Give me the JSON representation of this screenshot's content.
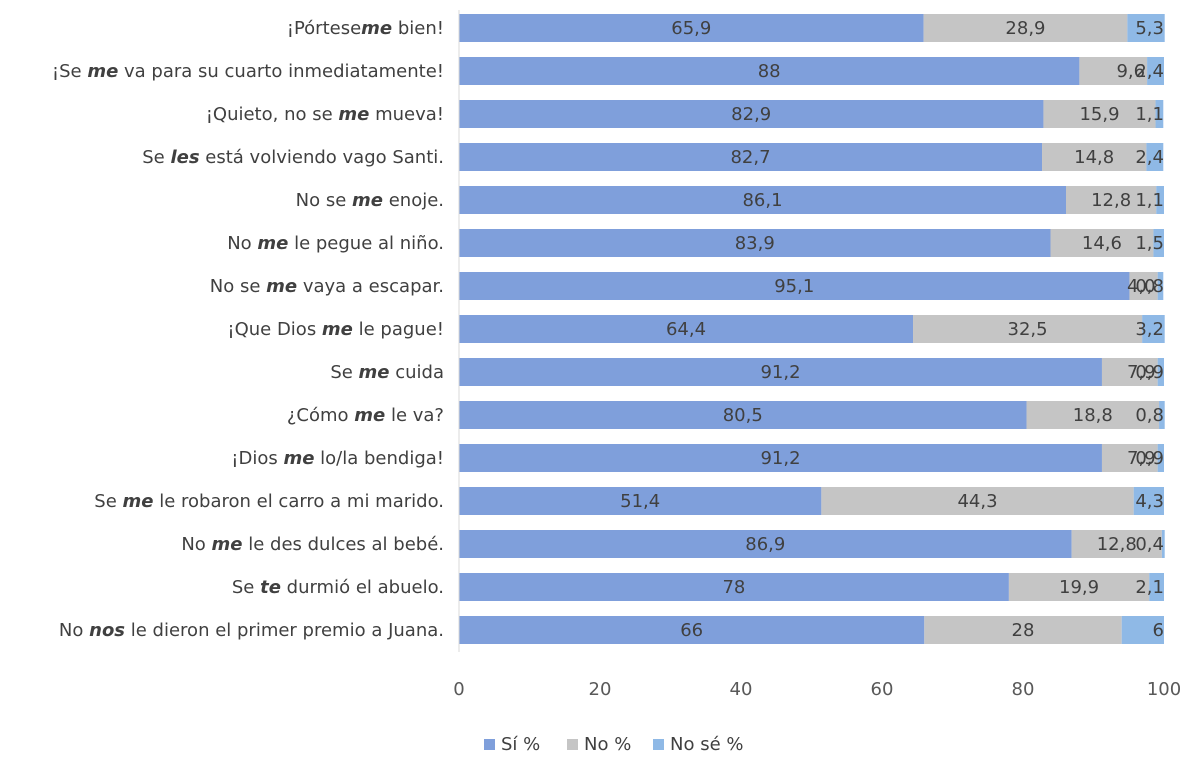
{
  "chart_data": {
    "type": "bar",
    "orientation": "horizontal",
    "stacked": true,
    "categories": [
      {
        "parts": [
          "¡Pórtese",
          "me",
          " bien!"
        ]
      },
      {
        "parts": [
          "¡Se ",
          "me",
          " va para su cuarto inmediatamente!"
        ]
      },
      {
        "parts": [
          "¡Quieto, no se ",
          "me",
          " mueva!"
        ]
      },
      {
        "parts": [
          "Se ",
          "les",
          " está volviendo vago Santi."
        ]
      },
      {
        "parts": [
          "No se ",
          "me",
          " enoje."
        ]
      },
      {
        "parts": [
          "No ",
          "me",
          " le pegue al niño."
        ]
      },
      {
        "parts": [
          "No se ",
          "me",
          " vaya a escapar."
        ]
      },
      {
        "parts": [
          "¡Que Dios ",
          "me",
          " le pague!"
        ]
      },
      {
        "parts": [
          "Se ",
          "me",
          " cuida"
        ]
      },
      {
        "parts": [
          "¿Cómo ",
          "me",
          " le va?"
        ]
      },
      {
        "parts": [
          "¡Dios ",
          "me",
          " lo/la bendiga!"
        ]
      },
      {
        "parts": [
          "Se ",
          "me",
          " le robaron el carro a mi marido."
        ]
      },
      {
        "parts": [
          "No ",
          "me",
          " le des dulces al bebé."
        ]
      },
      {
        "parts": [
          "Se ",
          "te",
          " durmió el abuelo."
        ]
      },
      {
        "parts": [
          "No ",
          "nos",
          " le dieron el primer premio a Juana."
        ]
      }
    ],
    "series": [
      {
        "name": "Sí %",
        "color": "#7f9fdb",
        "values": [
          65.9,
          88,
          82.9,
          82.7,
          86.1,
          83.9,
          95.1,
          64.4,
          91.2,
          80.5,
          91.2,
          51.4,
          86.9,
          78,
          66
        ],
        "labels": [
          "65,9",
          "88",
          "82,9",
          "82,7",
          "86,1",
          "83,9",
          "95,1",
          "64,4",
          "91,2",
          "80,5",
          "91,2",
          "51,4",
          "86,9",
          "78",
          "66"
        ]
      },
      {
        "name": "No %",
        "color": "#c5c5c5",
        "values": [
          28.9,
          9.6,
          15.9,
          14.8,
          12.8,
          14.6,
          4.0,
          32.5,
          7.9,
          18.8,
          7.9,
          44.3,
          12.8,
          19.9,
          28
        ],
        "labels": [
          "28,9",
          "9,6",
          "15,9",
          "14,8",
          "12,8",
          "14,6",
          "4,0",
          "32,5",
          "7,9",
          "18,8",
          "7,9",
          "44,3",
          "12,8",
          "19,9",
          "28"
        ]
      },
      {
        "name": "No sé %",
        "color": "#8fb9e6",
        "values": [
          5.3,
          2.4,
          1.1,
          2.4,
          1.1,
          1.5,
          0.8,
          3.2,
          0.9,
          0.8,
          0.9,
          4.3,
          0.4,
          2.1,
          6
        ],
        "labels": [
          "5,3",
          "2,4",
          "1,1",
          "2,4",
          "1,1",
          "1,5",
          "0,8",
          "3,2",
          "0,9",
          "0,8",
          "0,9",
          "4,3",
          "0,4",
          "2,1",
          "6"
        ]
      }
    ],
    "xlim": [
      0,
      100
    ],
    "xticks": [
      "0",
      "20",
      "40",
      "60",
      "80",
      "100"
    ],
    "legend_position": "bottom-center",
    "grid": false
  }
}
